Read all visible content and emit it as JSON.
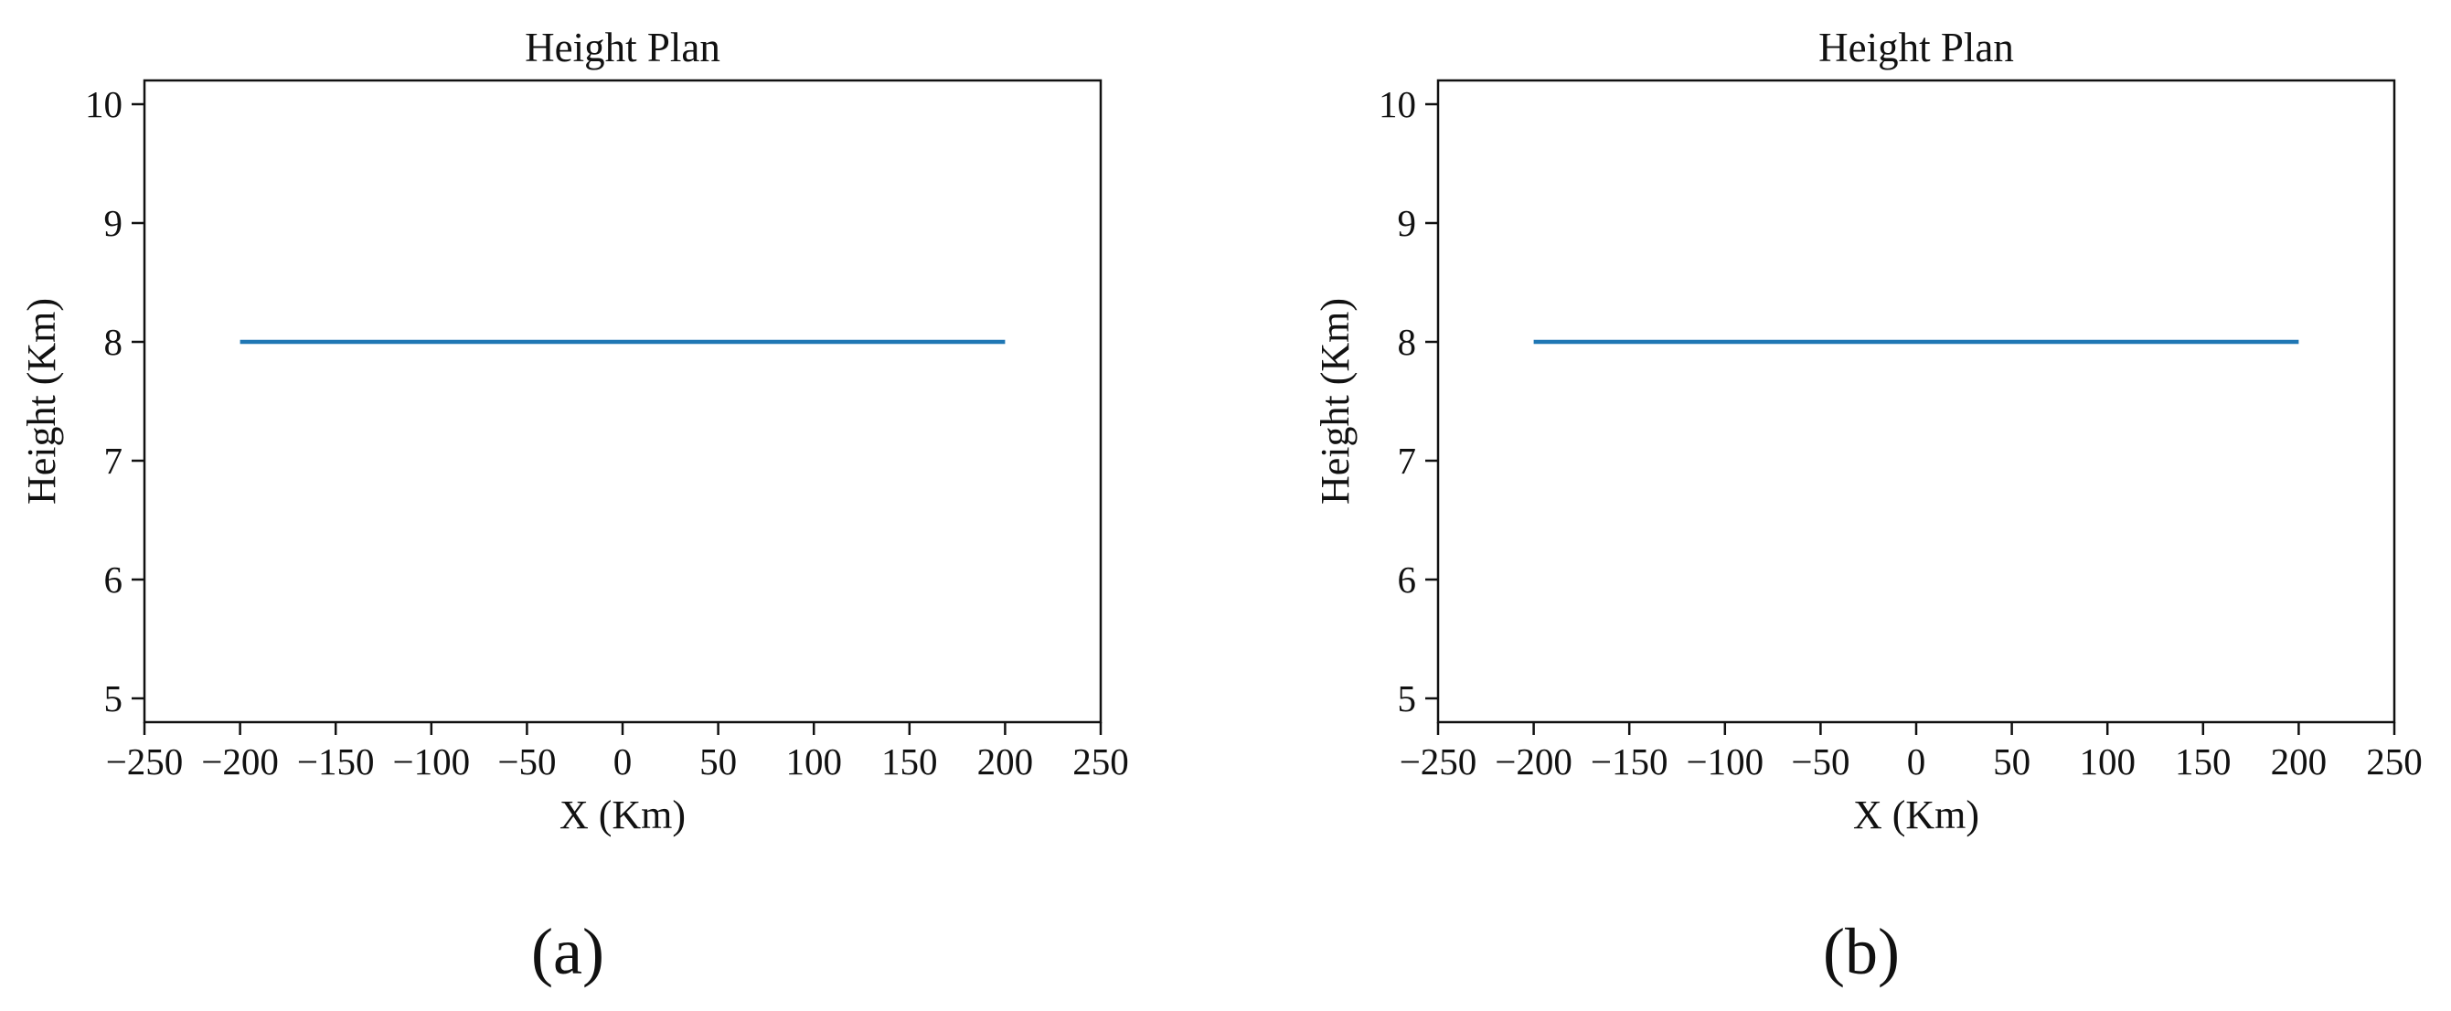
{
  "chart_data": [
    {
      "type": "line",
      "title": "Height Plan",
      "xlabel": "X (Km)",
      "ylabel": "Height (Km)",
      "xlim": [
        -250,
        250
      ],
      "ylim": [
        4.8,
        10.2
      ],
      "xticks": [
        -250,
        -200,
        -150,
        -100,
        -50,
        0,
        50,
        100,
        150,
        200,
        250
      ],
      "yticks": [
        5,
        6,
        7,
        8,
        9,
        10
      ],
      "xtick_labels": [
        "−250",
        "−200",
        "−150",
        "−100",
        "−50",
        "0",
        "50",
        "100",
        "150",
        "200",
        "250"
      ],
      "ytick_labels": [
        "5",
        "6",
        "7",
        "8",
        "9",
        "10"
      ],
      "grid": false,
      "series": [
        {
          "x": [
            -200,
            200
          ],
          "y": [
            8,
            8
          ],
          "color": "#1f77b4"
        }
      ],
      "caption": "(a)"
    },
    {
      "type": "line",
      "title": "Height Plan",
      "xlabel": "X (Km)",
      "ylabel": "Height (Km)",
      "xlim": [
        -250,
        250
      ],
      "ylim": [
        4.8,
        10.2
      ],
      "xticks": [
        -250,
        -200,
        -150,
        -100,
        -50,
        0,
        50,
        100,
        150,
        200,
        250
      ],
      "yticks": [
        5,
        6,
        7,
        8,
        9,
        10
      ],
      "xtick_labels": [
        "−250",
        "−200",
        "−150",
        "−100",
        "−50",
        "0",
        "50",
        "100",
        "150",
        "200",
        "250"
      ],
      "ytick_labels": [
        "5",
        "6",
        "7",
        "8",
        "9",
        "10"
      ],
      "grid": false,
      "series": [
        {
          "x": [
            -200,
            200
          ],
          "y": [
            8,
            8
          ],
          "color": "#1f77b4"
        }
      ],
      "caption": "(b)"
    }
  ]
}
